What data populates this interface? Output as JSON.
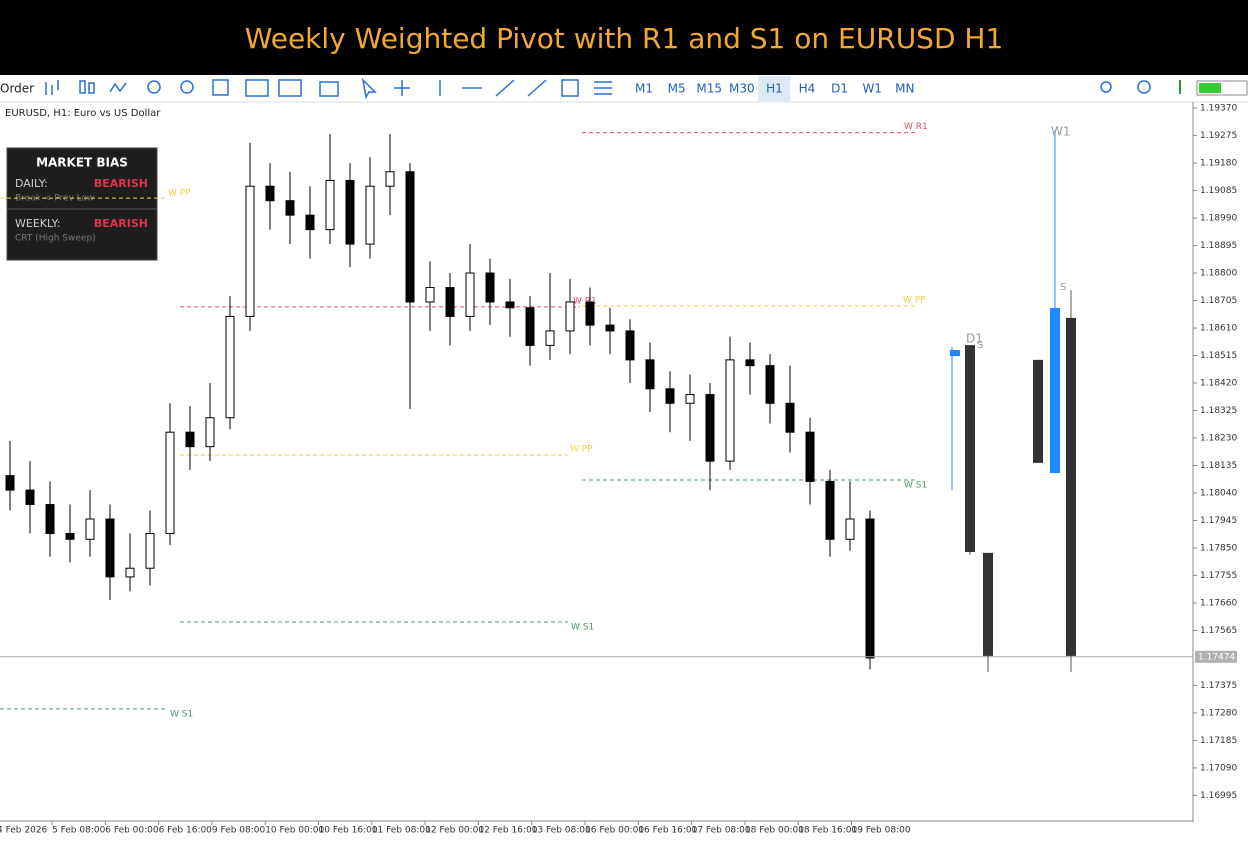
{
  "banner": {
    "title": "Weekly Weighted Pivot with R1 and S1 on EURUSD H1"
  },
  "toolbar": {
    "order": "Order",
    "timeframes": [
      {
        "label": "M1",
        "active": false
      },
      {
        "label": "M5",
        "active": false
      },
      {
        "label": "M15",
        "active": false
      },
      {
        "label": "M30",
        "active": false
      },
      {
        "label": "H1",
        "active": true
      },
      {
        "label": "H4",
        "active": false
      },
      {
        "label": "D1",
        "active": false
      },
      {
        "label": "W1",
        "active": false
      },
      {
        "label": "MN",
        "active": false
      }
    ]
  },
  "bias_panel": {
    "title": "MARKET BIAS",
    "rows": [
      {
        "label": "DAILY:",
        "value": "BEARISH",
        "note": "Break < Prev Low"
      },
      {
        "label": "WEEKLY:",
        "value": "BEARISH",
        "note": "CRT (High Sweep)"
      }
    ]
  },
  "chart_data": {
    "type": "candlestick",
    "symbol": "EURUSD, H1:  Euro vs US Dollar",
    "ylim": [
      1.1691,
      1.19391
    ],
    "yticks": [
      {
        "value": 1.1937,
        "label": "1.19370"
      },
      1.19275,
      {
        "value": 1.1918,
        "label": "1.19180"
      },
      1.19085,
      {
        "value": 1.1899,
        "label": "1.18990"
      },
      1.18895,
      {
        "value": 1.188,
        "label": "1.18800"
      },
      1.18705,
      {
        "value": 1.1861,
        "label": "1.18610"
      },
      1.18515,
      {
        "value": 1.1842,
        "label": "1.18420"
      },
      1.18325,
      {
        "value": 1.1823,
        "label": "1.18230"
      },
      1.18135,
      {
        "value": 1.1804,
        "label": "1.18040"
      },
      1.17945,
      {
        "value": 1.1785,
        "label": "1.17850"
      },
      1.17755,
      {
        "value": 1.1766,
        "label": "1.17660"
      },
      1.17565,
      1.17375,
      {
        "value": 1.1728,
        "label": "1.17280"
      },
      1.17185,
      {
        "value": 1.1709,
        "label": "1.17090"
      },
      1.16995
    ],
    "xlabels": [
      "4 Feb 2026",
      "5 Feb 08:00",
      "6 Feb 00:00",
      "6 Feb 16:00",
      "9 Feb 08:00",
      "10 Feb 00:00",
      "10 Feb 16:00",
      "11 Feb 08:00",
      "12 Feb 00:00",
      "12 Feb 16:00",
      "13 Feb 08:00",
      "16 Feb 00:00",
      "16 Feb 16:00",
      "17 Feb 08:00",
      "18 Feb 00:00",
      "18 Feb 16:00",
      "19 Feb 08:00"
    ],
    "ohlc": [
      [
        1.181,
        1.1822,
        1.1798,
        1.1805
      ],
      [
        1.1805,
        1.1815,
        1.179,
        1.18
      ],
      [
        1.18,
        1.1808,
        1.1782,
        1.179
      ],
      [
        1.179,
        1.18,
        1.178,
        1.1788
      ],
      [
        1.1788,
        1.1805,
        1.1782,
        1.1795
      ],
      [
        1.1795,
        1.18,
        1.1767,
        1.1775
      ],
      [
        1.1775,
        1.179,
        1.177,
        1.1778
      ],
      [
        1.1778,
        1.1798,
        1.1772,
        1.179
      ],
      [
        1.179,
        1.1835,
        1.1786,
        1.1825
      ],
      [
        1.1825,
        1.1834,
        1.1812,
        1.182
      ],
      [
        1.182,
        1.1842,
        1.1815,
        1.183
      ],
      [
        1.183,
        1.1872,
        1.1826,
        1.1865
      ],
      [
        1.1865,
        1.1925,
        1.186,
        1.191
      ],
      [
        1.191,
        1.1918,
        1.1895,
        1.1905
      ],
      [
        1.1905,
        1.1915,
        1.189,
        1.19
      ],
      [
        1.19,
        1.191,
        1.1885,
        1.1895
      ],
      [
        1.1895,
        1.1928,
        1.189,
        1.1912
      ],
      [
        1.1912,
        1.1918,
        1.1882,
        1.189
      ],
      [
        1.189,
        1.192,
        1.1885,
        1.191
      ],
      [
        1.191,
        1.1928,
        1.19,
        1.1915
      ],
      [
        1.1915,
        1.1918,
        1.1833,
        1.187
      ],
      [
        1.187,
        1.1884,
        1.186,
        1.1875
      ],
      [
        1.1875,
        1.188,
        1.1855,
        1.1865
      ],
      [
        1.1865,
        1.189,
        1.186,
        1.188
      ],
      [
        1.188,
        1.1885,
        1.1862,
        1.187
      ],
      [
        1.187,
        1.1878,
        1.1858,
        1.1868
      ],
      [
        1.1868,
        1.1872,
        1.1848,
        1.1855
      ],
      [
        1.1855,
        1.188,
        1.185,
        1.186
      ],
      [
        1.186,
        1.1878,
        1.1852,
        1.187
      ],
      [
        1.187,
        1.1875,
        1.1855,
        1.1862
      ],
      [
        1.1862,
        1.1868,
        1.1852,
        1.186
      ],
      [
        1.186,
        1.1864,
        1.1842,
        1.185
      ],
      [
        1.185,
        1.1856,
        1.1832,
        1.184
      ],
      [
        1.184,
        1.1846,
        1.1825,
        1.1835
      ],
      [
        1.1835,
        1.1845,
        1.1822,
        1.1838
      ],
      [
        1.1838,
        1.1842,
        1.1805,
        1.1815
      ],
      [
        1.1815,
        1.1858,
        1.1812,
        1.185
      ],
      [
        1.185,
        1.1856,
        1.1838,
        1.1848
      ],
      [
        1.1848,
        1.1852,
        1.1828,
        1.1835
      ],
      [
        1.1835,
        1.1848,
        1.1818,
        1.1825
      ],
      [
        1.1825,
        1.183,
        1.18,
        1.1808
      ],
      [
        1.1808,
        1.1812,
        1.1782,
        1.1788
      ],
      [
        1.1788,
        1.1808,
        1.1784,
        1.1795
      ],
      [
        1.1795,
        1.1798,
        1.1743,
        1.1747
      ]
    ],
    "levels": [
      {
        "label": "W R1",
        "value": 1.19285,
        "color": "#e0506a"
      },
      {
        "label": "W PP",
        "value": 1.19059,
        "color": "#f0d040"
      },
      {
        "label": "W R1",
        "value": 1.18683,
        "color": "#e0506a"
      },
      {
        "label": "W PP",
        "value": 1.18686,
        "color": "#f0d040"
      },
      {
        "label": "W PP",
        "value": 1.18171,
        "color": "#f0d040"
      },
      {
        "label": "W S1",
        "value": 1.18085,
        "color": "#4a9a70"
      },
      {
        "label": "W S1",
        "value": 1.17594,
        "color": "#4a9a70"
      },
      {
        "label": "W S1",
        "value": 1.17294,
        "color": "#4a9a70"
      }
    ],
    "current_price": {
      "value": 1.17474,
      "label": "1.17474"
    },
    "htf": [
      {
        "label": "D1",
        "marker": "S",
        "candles": [
          [
            1.18513,
            1.18544,
            1.1805,
            1.18534
          ],
          [
            1.18551,
            1.18551,
            1.17826,
            1.17836
          ],
          [
            1.17833,
            1.17833,
            1.17422,
            1.17477
          ]
        ]
      },
      {
        "label": "W1",
        "marker": "S",
        "candles": [
          [
            1.185,
            1.185,
            1.18144,
            1.18144
          ],
          [
            1.18109,
            1.19294,
            1.18109,
            1.18679
          ],
          [
            1.18645,
            1.18741,
            1.17422,
            1.17477
          ]
        ]
      }
    ],
    "bull_color": "#1e88ff",
    "bear_color": "#333333"
  }
}
